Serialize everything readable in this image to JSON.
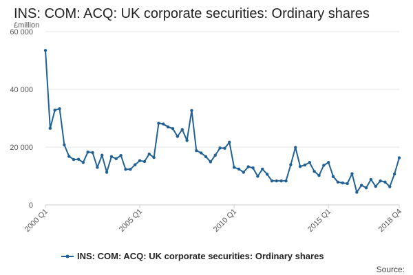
{
  "chart_data": {
    "type": "line",
    "title": "INS: COM: ACQ: UK corporate securities: Ordinary shares",
    "y_unit": "£million",
    "ylim": [
      0,
      60000
    ],
    "y_ticks": [
      0,
      20000,
      40000,
      60000
    ],
    "y_tick_labels": [
      "0",
      "20 000",
      "40 000",
      "60 000"
    ],
    "x_tick_labels": [
      "2000 Q1",
      "2005 Q1",
      "2010 Q1",
      "2015 Q1",
      "2018 Q4"
    ],
    "x_tick_index": [
      0,
      20,
      40,
      60,
      75
    ],
    "grid": true,
    "legend_position": "bottom",
    "source_label": "Source:",
    "color": "#206095",
    "series": [
      {
        "name": "INS: COM: ACQ: UK corporate securities: Ordinary shares",
        "x": [
          "2000 Q1",
          "2000 Q2",
          "2000 Q3",
          "2000 Q4",
          "2001 Q1",
          "2001 Q2",
          "2001 Q3",
          "2001 Q4",
          "2002 Q1",
          "2002 Q2",
          "2002 Q3",
          "2002 Q4",
          "2003 Q1",
          "2003 Q2",
          "2003 Q3",
          "2003 Q4",
          "2004 Q1",
          "2004 Q2",
          "2004 Q3",
          "2004 Q4",
          "2005 Q1",
          "2005 Q2",
          "2005 Q3",
          "2005 Q4",
          "2006 Q1",
          "2006 Q2",
          "2006 Q3",
          "2006 Q4",
          "2007 Q1",
          "2007 Q2",
          "2007 Q3",
          "2007 Q4",
          "2008 Q1",
          "2008 Q2",
          "2008 Q3",
          "2008 Q4",
          "2009 Q1",
          "2009 Q2",
          "2009 Q3",
          "2009 Q4",
          "2010 Q1",
          "2010 Q2",
          "2010 Q3",
          "2010 Q4",
          "2011 Q1",
          "2011 Q2",
          "2011 Q3",
          "2011 Q4",
          "2012 Q1",
          "2012 Q2",
          "2012 Q3",
          "2012 Q4",
          "2013 Q1",
          "2013 Q2",
          "2013 Q3",
          "2013 Q4",
          "2014 Q1",
          "2014 Q2",
          "2014 Q3",
          "2014 Q4",
          "2015 Q1",
          "2015 Q2",
          "2015 Q3",
          "2015 Q4",
          "2016 Q1",
          "2016 Q2",
          "2016 Q3",
          "2016 Q4",
          "2017 Q1",
          "2017 Q2",
          "2017 Q3",
          "2017 Q4",
          "2018 Q1",
          "2018 Q2",
          "2018 Q3",
          "2018 Q4"
        ],
        "values": [
          53500,
          26500,
          32800,
          33300,
          20800,
          16800,
          15700,
          15800,
          14700,
          18300,
          18100,
          13000,
          17200,
          11300,
          16700,
          16000,
          17100,
          12300,
          12300,
          13900,
          15300,
          15000,
          17600,
          16400,
          28300,
          28000,
          27000,
          26400,
          23700,
          26100,
          22300,
          32700,
          18800,
          18000,
          16700,
          14900,
          17200,
          19700,
          19600,
          21700,
          13000,
          12400,
          11300,
          13200,
          12800,
          9900,
          12400,
          10600,
          8300,
          8300,
          8300,
          8300,
          13900,
          19900,
          13300,
          13800,
          14700,
          11600,
          10200,
          13700,
          14700,
          9800,
          7900,
          7600,
          7400,
          10800,
          4400,
          6800,
          5900,
          8800,
          6400,
          8300,
          7900,
          6300,
          10700,
          16300
        ]
      }
    ]
  }
}
